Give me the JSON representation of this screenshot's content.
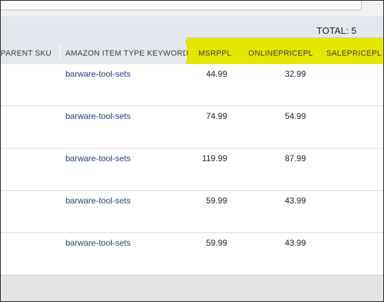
{
  "summary": {
    "total": "TOTAL: 5"
  },
  "columns": {
    "parent_sku": "PARENT SKU",
    "item_type_keyword": "AMAZON ITEM TYPE KEYWORD",
    "msrppl": "MSRPPL",
    "onlinepricepl": "ONLINEPRICEPL",
    "salepricepl": "SALEPRICEPL"
  },
  "rows": [
    {
      "keyword": "barware-tool-sets",
      "msrppl": "44.99",
      "onlinepricepl": "32.99"
    },
    {
      "keyword": "barware-tool-sets",
      "msrppl": "74.99",
      "onlinepricepl": "54.99"
    },
    {
      "keyword": "barware-tool-sets",
      "msrppl": "119.99",
      "onlinepricepl": "87.99"
    },
    {
      "keyword": "barware-tool-sets",
      "msrppl": "59.99",
      "onlinepricepl": "43.99"
    },
    {
      "keyword": "barware-tool-sets",
      "msrppl": "59.99",
      "onlinepricepl": "43.99"
    }
  ],
  "colors": {
    "highlight": "#e6e600",
    "header_band": "#e3e8ef",
    "link": "#1f3f7a"
  }
}
